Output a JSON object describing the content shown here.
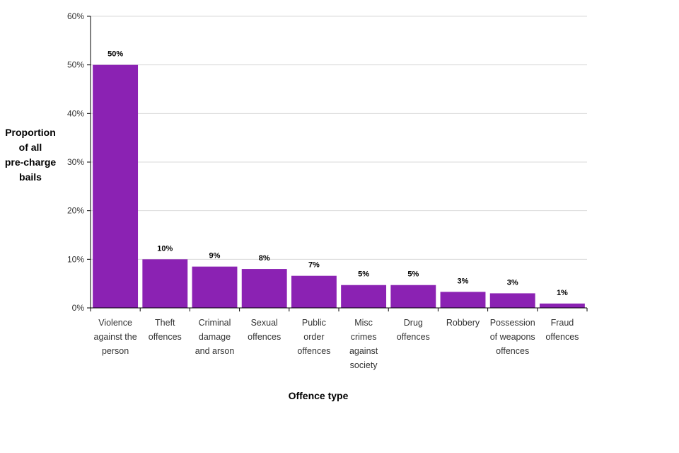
{
  "chart_data": {
    "type": "bar",
    "title": "",
    "xlabel": "Offence type",
    "ylabel_lines": [
      "Proportion",
      "of all",
      "pre-charge",
      "bails"
    ],
    "ylim": [
      0,
      60
    ],
    "yticks": [
      0,
      10,
      20,
      30,
      40,
      50,
      60
    ],
    "ytick_labels": [
      "0%",
      "10%",
      "20%",
      "30%",
      "40%",
      "50%",
      "60%"
    ],
    "grid": true,
    "bar_color": "#8b22b3",
    "categories": [
      [
        "Violence",
        "against the",
        "person"
      ],
      [
        "Theft",
        "offences"
      ],
      [
        "Criminal",
        "damage",
        "and arson"
      ],
      [
        "Sexual",
        "offences"
      ],
      [
        "Public",
        "order",
        "offences"
      ],
      [
        "Misc",
        "crimes",
        "against",
        "society"
      ],
      [
        "Drug",
        "offences"
      ],
      [
        "Robbery"
      ],
      [
        "Possession",
        "of weapons",
        "offences"
      ],
      [
        "Fraud",
        "offences"
      ]
    ],
    "values": [
      50,
      10,
      8.5,
      8,
      6.6,
      4.7,
      4.7,
      3.3,
      3,
      0.9
    ],
    "data_labels": [
      "50%",
      "10%",
      "9%",
      "8%",
      "7%",
      "5%",
      "5%",
      "3%",
      "3%",
      "1%"
    ]
  }
}
